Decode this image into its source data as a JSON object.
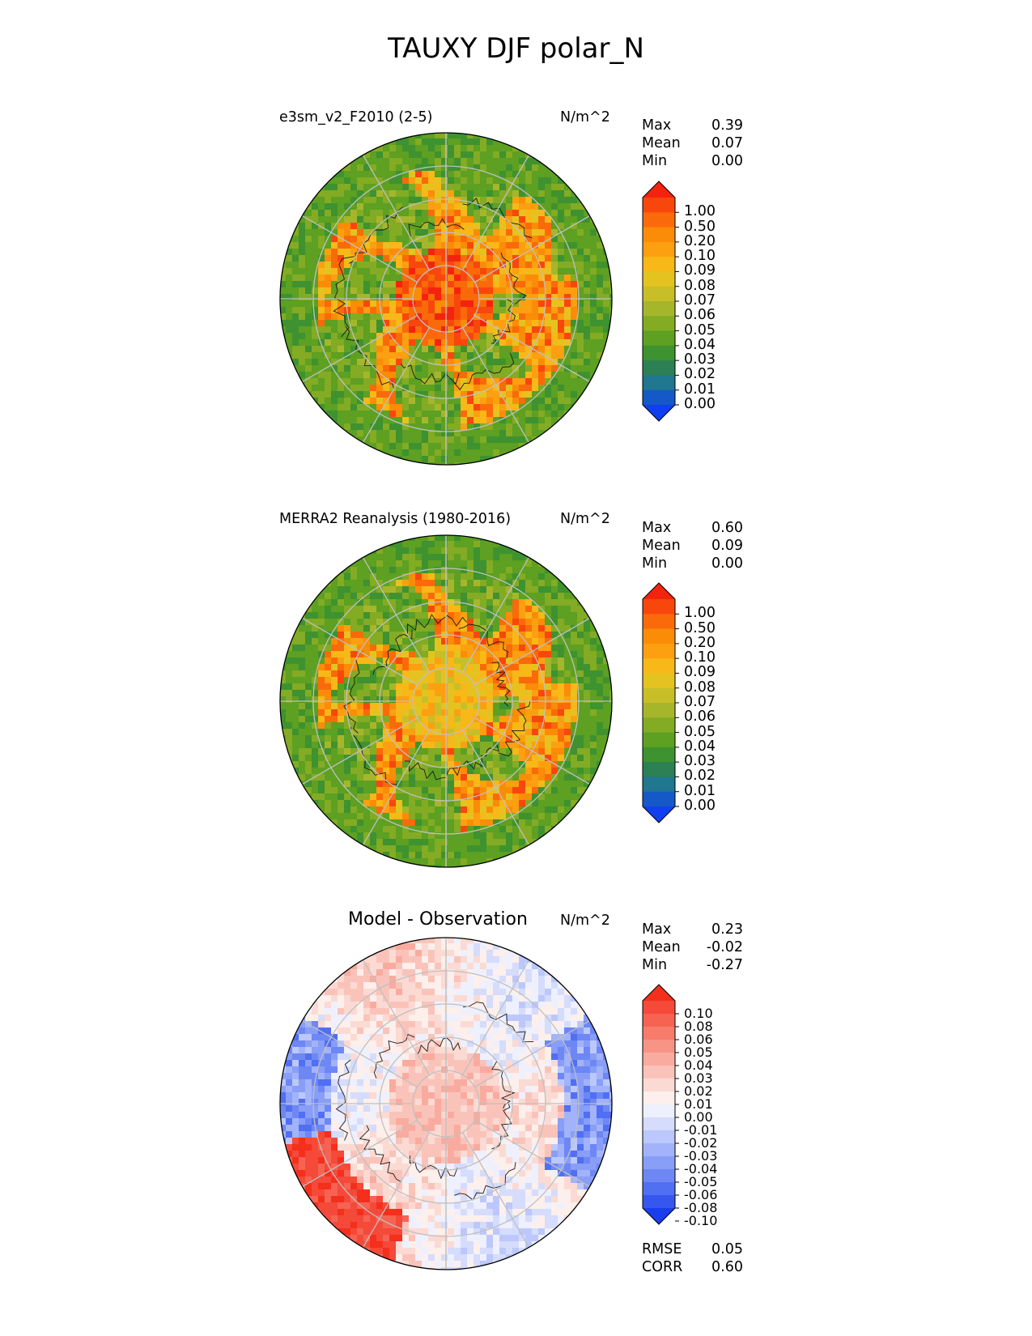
{
  "title": "TAUXY DJF polar_N",
  "panels": [
    {
      "name": "test",
      "title": "e3sm_v2_F2010 (2-5)",
      "units": "N/m^2",
      "stats": [
        {
          "label": "Max",
          "value": "0.39"
        },
        {
          "label": "Mean",
          "value": "0.07"
        },
        {
          "label": "Min",
          "value": "0.00"
        }
      ],
      "colorbar": {
        "levels": [
          "1.00",
          "0.50",
          "0.20",
          "0.10",
          "0.09",
          "0.08",
          "0.07",
          "0.06",
          "0.05",
          "0.04",
          "0.03",
          "0.02",
          "0.01",
          "0.00"
        ],
        "colors": [
          "#f4230e",
          "#f8470c",
          "#fa6a0a",
          "#fb8c08",
          "#fc9f10",
          "#f7b818",
          "#e4c321",
          "#c8bf28",
          "#a6b62c",
          "#83ab24",
          "#5da022",
          "#3e922f",
          "#2c8054",
          "#1f7790",
          "#1559c8",
          "#0f3fef"
        ]
      }
    },
    {
      "name": "reference",
      "title": "MERRA2 Reanalysis (1980-2016)",
      "units": "N/m^2",
      "stats": [
        {
          "label": "Max",
          "value": "0.60"
        },
        {
          "label": "Mean",
          "value": "0.09"
        },
        {
          "label": "Min",
          "value": "0.00"
        }
      ],
      "colorbar": {
        "levels": [
          "1.00",
          "0.50",
          "0.20",
          "0.10",
          "0.09",
          "0.08",
          "0.07",
          "0.06",
          "0.05",
          "0.04",
          "0.03",
          "0.02",
          "0.01",
          "0.00"
        ],
        "colors": [
          "#f4230e",
          "#f8470c",
          "#fa6a0a",
          "#fb8c08",
          "#fc9f10",
          "#f7b818",
          "#e4c321",
          "#c8bf28",
          "#a6b62c",
          "#83ab24",
          "#5da022",
          "#3e922f",
          "#2c8054",
          "#1f7790",
          "#1559c8",
          "#0f3fef"
        ]
      }
    },
    {
      "name": "difference",
      "title": "Model - Observation",
      "units": "N/m^2",
      "stats": [
        {
          "label": "Max",
          "value": "0.23"
        },
        {
          "label": "Mean",
          "value": "-0.02"
        },
        {
          "label": "Min",
          "value": "-0.27"
        }
      ],
      "metrics": [
        {
          "label": "RMSE",
          "value": "0.05"
        },
        {
          "label": "CORR",
          "value": "0.60"
        }
      ],
      "colorbar": {
        "levels": [
          "0.10",
          "0.08",
          "0.06",
          "0.05",
          "0.04",
          "0.03",
          "0.02",
          "0.01",
          "0.00",
          "-0.01",
          "-0.02",
          "-0.03",
          "-0.04",
          "-0.05",
          "-0.06",
          "-0.08",
          "-0.10"
        ],
        "colors": [
          "#f42f1c",
          "#f5493a",
          "#f66353",
          "#f77c6c",
          "#f89486",
          "#f9ab9f",
          "#fac3b9",
          "#fbdad3",
          "#fcefec",
          "#eef0fd",
          "#d5dcfc",
          "#bcc8fb",
          "#a2b3f9",
          "#889ef7",
          "#6d87f5",
          "#516ff2",
          "#3557ef",
          "#1a3eed"
        ]
      }
    }
  ]
}
